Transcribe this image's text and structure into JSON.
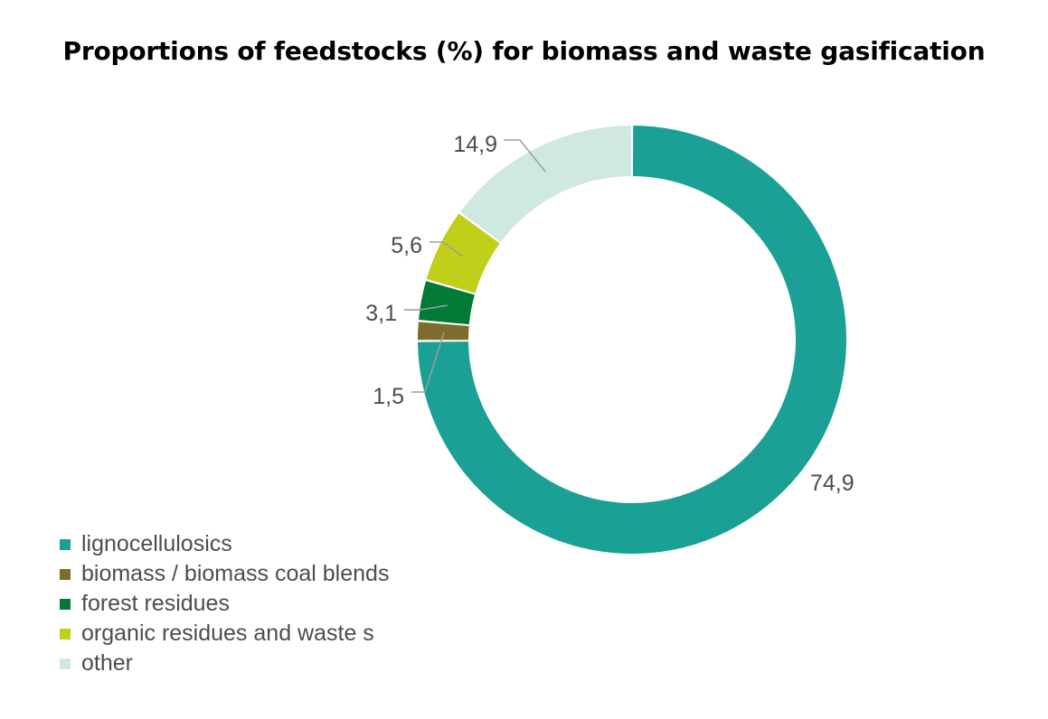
{
  "chart_data": {
    "type": "pie",
    "donut": true,
    "title": "Proportions of feedstocks (%) for biomass and waste gasification",
    "categories": [
      "lignocellulosics",
      "biomass / biomass coal blends",
      "forest residues",
      "organic residues and waste s",
      "other"
    ],
    "values": [
      74.9,
      1.5,
      3.1,
      5.6,
      14.9
    ],
    "data_labels": [
      "74,9",
      "1,5",
      "3,1",
      "5,6",
      "14,9"
    ],
    "colors": [
      "#1aa094",
      "#7e6b2e",
      "#007a35",
      "#bfcf1a",
      "#cfe8e2"
    ],
    "legend_position": "bottom-left"
  }
}
